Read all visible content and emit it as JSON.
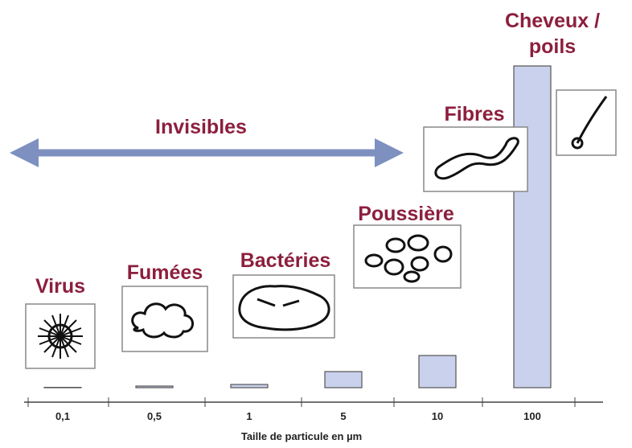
{
  "chart_data": {
    "type": "bar",
    "categories": [
      "0,1",
      "0,5",
      "1",
      "5",
      "10",
      "100"
    ],
    "values": [
      0.1,
      0.5,
      1,
      5,
      10,
      100
    ],
    "color": "#c9d1ec",
    "x_label": "Taille de particule en µm",
    "annotations": [
      "Virus",
      "Fumées",
      "Bactéries",
      "Poussière",
      "Fibres",
      "Cheveux / poils"
    ],
    "arrow_label": "Invisibles"
  }
}
